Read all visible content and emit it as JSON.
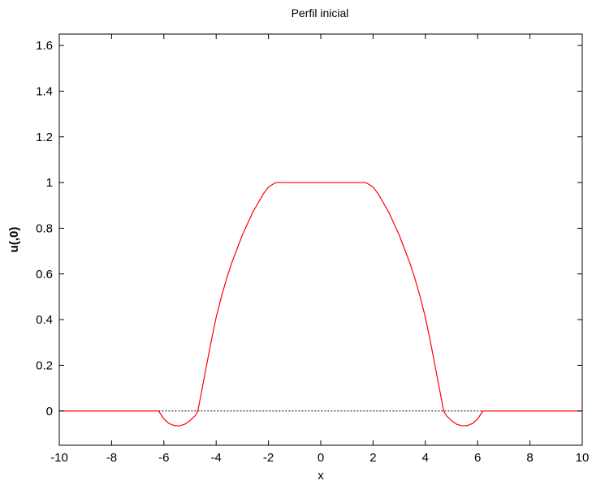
{
  "chart_data": {
    "type": "line",
    "title": "Perfil inicial",
    "xlabel": "x",
    "ylabel": "u(,0)",
    "xlim": [
      -10,
      10
    ],
    "ylim": [
      -0.15,
      1.65
    ],
    "xticks": [
      "-10",
      "-8",
      "-6",
      "-4",
      "-2",
      "0",
      "2",
      "4",
      "6",
      "8",
      "10"
    ],
    "yticks": [
      "0",
      "0.2",
      "0.4",
      "0.6",
      "0.8",
      "1",
      "1.2",
      "1.4",
      "1.6"
    ],
    "grid": false,
    "colors": {
      "series": "#ff0000",
      "reference": "#000000",
      "axes": "#000000"
    },
    "series": [
      {
        "x": [
          -10,
          -6.2,
          -6.0,
          -5.8,
          -5.6,
          -5.4,
          -5.2,
          -5.0,
          -4.8,
          -4.7,
          -4.6,
          -4.5,
          -4.4,
          -4.2,
          -4.0,
          -3.8,
          -3.6,
          -3.4,
          -3.2,
          -3.0,
          -2.8,
          -2.6,
          -2.4,
          -2.2,
          -2.0,
          -1.8,
          -1.7,
          -1.5,
          0,
          1.5,
          1.7,
          1.8,
          2.0,
          2.2,
          2.4,
          2.6,
          2.8,
          3.0,
          3.2,
          3.4,
          3.6,
          3.8,
          4.0,
          4.2,
          4.4,
          4.5,
          4.6,
          4.7,
          4.8,
          5.0,
          5.2,
          5.4,
          5.6,
          5.8,
          6.0,
          6.2,
          10
        ],
        "y": [
          0,
          0,
          -0.035,
          -0.055,
          -0.064,
          -0.065,
          -0.058,
          -0.042,
          -0.02,
          0,
          0.06,
          0.12,
          0.18,
          0.3,
          0.41,
          0.5,
          0.58,
          0.65,
          0.71,
          0.77,
          0.82,
          0.87,
          0.91,
          0.95,
          0.98,
          0.995,
          1.0,
          1.0,
          1.0,
          1.0,
          1.0,
          0.995,
          0.98,
          0.95,
          0.91,
          0.87,
          0.82,
          0.77,
          0.71,
          0.65,
          0.58,
          0.5,
          0.41,
          0.3,
          0.18,
          0.12,
          0.06,
          0,
          -0.02,
          -0.042,
          -0.058,
          -0.065,
          -0.064,
          -0.055,
          -0.035,
          0,
          0
        ]
      }
    ],
    "reference_line": {
      "y": 0,
      "x_from": -6.2,
      "x_to": 6.2,
      "style": "dotted"
    }
  }
}
